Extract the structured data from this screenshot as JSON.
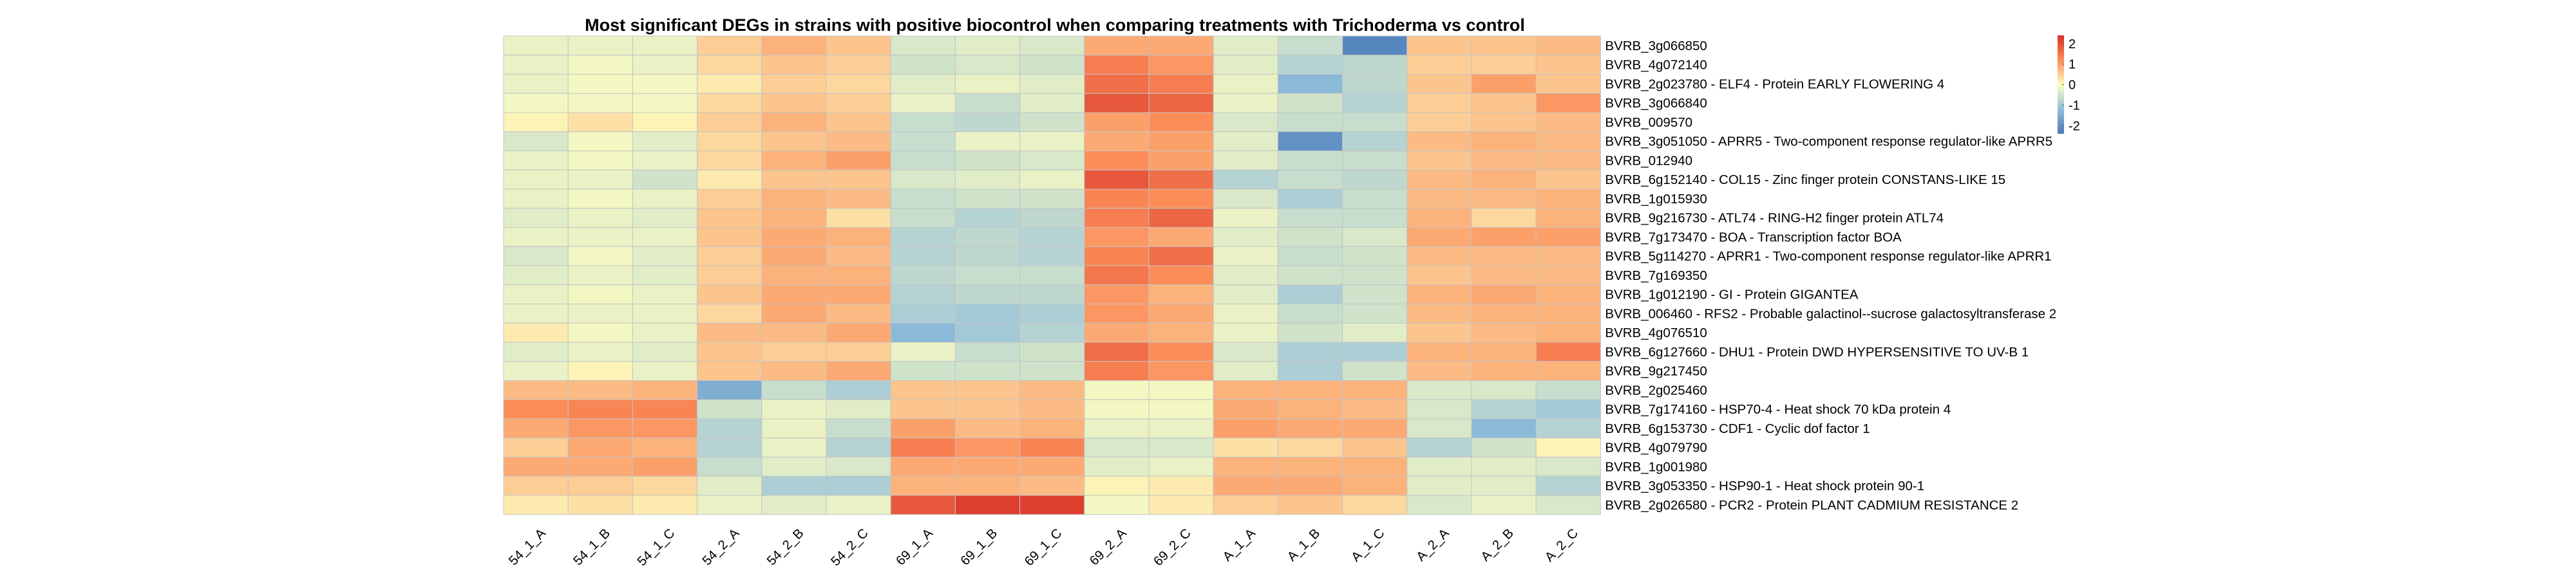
{
  "chart_data": {
    "type": "heatmap",
    "title": "Most significant DEGs in strains with positive biocontrol when comparing treatments with Trichoderma vs control",
    "columns": [
      "54_1_A",
      "54_1_B",
      "54_1_C",
      "54_2_A",
      "54_2_B",
      "54_2_C",
      "69_1_A",
      "69_1_B",
      "69_1_C",
      "69_2_A",
      "69_2_C",
      "A_1_A",
      "A_1_B",
      "A_1_C",
      "A_2_A",
      "A_2_B",
      "A_2_C"
    ],
    "rows": [
      "BVRB_3g066850",
      "BVRB_4g072140",
      "BVRB_2g023780 - ELF4 - Protein EARLY FLOWERING 4",
      "BVRB_3g066840",
      "BVRB_009570",
      "BVRB_3g051050 - APRR5 - Two-component response regulator-like APRR5",
      "BVRB_012940",
      "BVRB_6g152140 - COL15 - Zinc finger protein CONSTANS-LIKE 15",
      "BVRB_1g015930",
      "BVRB_9g216730 - ATL74 - RING-H2 finger protein ATL74",
      "BVRB_7g173470 - BOA - Transcription factor BOA",
      "BVRB_5g114270 - APRR1 - Two-component response regulator-like APRR1",
      "BVRB_7g169350",
      "BVRB_1g012190 - GI - Protein GIGANTEA",
      "BVRB_006460 - RFS2 - Probable galactinol--sucrose galactosyltransferase 2",
      "BVRB_4g076510",
      "BVRB_6g127660 - DHU1 - Protein DWD HYPERSENSITIVE TO UV-B 1",
      "BVRB_9g217450",
      "BVRB_2g025460",
      "BVRB_7g174160 - HSP70-4 - Heat shock 70 kDa protein 4",
      "BVRB_6g153730 - CDF1 - Cyclic dof factor 1",
      "BVRB_4g079790",
      "BVRB_1g001980",
      "BVRB_3g053350 - HSP90-1 - Heat shock protein 90-1",
      "BVRB_2g026580 - PCR2 - Protein PLANT CADMIUM RESISTANCE 2"
    ],
    "values": [
      [
        -0.2,
        -0.2,
        -0.2,
        0.5,
        0.8,
        0.6,
        -0.4,
        -0.3,
        -0.4,
        0.9,
        0.9,
        -0.3,
        -0.6,
        -2.2,
        0.6,
        0.6,
        0.7
      ],
      [
        -0.2,
        -0.1,
        -0.2,
        0.4,
        0.6,
        0.5,
        -0.5,
        -0.4,
        -0.5,
        1.4,
        1.1,
        -0.3,
        -0.8,
        -0.7,
        0.5,
        0.5,
        0.6
      ],
      [
        -0.2,
        -0.1,
        -0.1,
        0.2,
        0.5,
        0.4,
        -0.3,
        -0.2,
        -0.3,
        1.6,
        1.4,
        -0.2,
        -1.3,
        -0.7,
        0.6,
        1.0,
        0.6
      ],
      [
        -0.1,
        -0.1,
        -0.1,
        0.4,
        0.6,
        0.5,
        -0.2,
        -0.6,
        -0.3,
        1.9,
        1.7,
        -0.2,
        -0.5,
        -0.8,
        0.5,
        0.6,
        1.1
      ],
      [
        0.1,
        0.3,
        0.1,
        0.5,
        0.8,
        0.6,
        -0.6,
        -0.7,
        -0.5,
        1.0,
        1.2,
        -0.4,
        -0.6,
        -0.6,
        0.5,
        0.6,
        0.7
      ],
      [
        -0.4,
        -0.1,
        -0.3,
        0.4,
        0.6,
        0.7,
        -0.6,
        -0.2,
        -0.2,
        0.9,
        1.0,
        -0.3,
        -2.0,
        -0.8,
        0.7,
        0.8,
        0.7
      ],
      [
        -0.2,
        -0.1,
        -0.2,
        0.4,
        0.8,
        1.0,
        -0.6,
        -0.5,
        -0.4,
        1.2,
        1.0,
        -0.3,
        -0.6,
        -0.6,
        0.6,
        0.7,
        0.7
      ],
      [
        -0.2,
        -0.2,
        -0.5,
        0.2,
        0.6,
        0.6,
        -0.4,
        -0.3,
        -0.2,
        1.9,
        1.6,
        -0.8,
        -0.6,
        -0.7,
        0.7,
        0.8,
        0.6
      ],
      [
        -0.2,
        -0.1,
        -0.2,
        0.5,
        0.8,
        0.7,
        -0.6,
        -0.5,
        -0.5,
        1.3,
        1.2,
        -0.4,
        -0.9,
        -0.6,
        0.7,
        0.7,
        0.8
      ],
      [
        -0.3,
        -0.2,
        -0.3,
        0.6,
        0.8,
        0.3,
        -0.6,
        -0.8,
        -0.7,
        1.4,
        1.7,
        -0.2,
        -0.6,
        -0.6,
        0.8,
        0.4,
        0.8
      ],
      [
        -0.2,
        -0.2,
        -0.2,
        0.6,
        0.9,
        0.8,
        -0.8,
        -0.7,
        -0.8,
        1.1,
        0.9,
        -0.3,
        -0.5,
        -0.4,
        0.9,
        1.0,
        1.0
      ],
      [
        -0.4,
        -0.1,
        -0.3,
        0.5,
        0.9,
        0.7,
        -0.8,
        -0.7,
        -0.8,
        1.3,
        1.6,
        -0.2,
        -0.6,
        -0.5,
        0.7,
        0.7,
        0.7
      ],
      [
        -0.3,
        -0.2,
        -0.3,
        0.5,
        0.8,
        0.8,
        -0.7,
        -0.6,
        -0.6,
        1.5,
        1.2,
        -0.3,
        -0.5,
        -0.5,
        0.6,
        0.7,
        0.7
      ],
      [
        -0.2,
        -0.1,
        -0.2,
        0.6,
        0.9,
        0.9,
        -0.8,
        -0.7,
        -0.7,
        1.1,
        0.8,
        -0.3,
        -0.9,
        -0.5,
        0.8,
        0.9,
        0.8
      ],
      [
        -0.2,
        -0.2,
        -0.2,
        0.4,
        0.9,
        0.7,
        -0.9,
        -1.0,
        -0.9,
        1.1,
        0.9,
        -0.2,
        -0.6,
        -0.5,
        0.7,
        0.8,
        0.8
      ],
      [
        0.2,
        -0.1,
        -0.2,
        0.7,
        0.7,
        0.9,
        -1.3,
        -1.0,
        -0.8,
        0.9,
        0.8,
        -0.2,
        -0.5,
        -0.3,
        0.6,
        0.7,
        0.8
      ],
      [
        -0.3,
        -0.2,
        -0.3,
        0.6,
        0.5,
        0.5,
        -0.2,
        -0.6,
        -0.5,
        1.6,
        1.2,
        -0.4,
        -0.9,
        -0.9,
        0.8,
        0.8,
        1.4
      ],
      [
        -0.2,
        0.1,
        -0.2,
        0.6,
        0.7,
        0.9,
        -0.5,
        -0.5,
        -0.5,
        1.4,
        1.1,
        -0.3,
        -0.9,
        -0.5,
        0.7,
        0.8,
        0.8
      ],
      [
        0.7,
        0.7,
        0.8,
        -1.5,
        -0.6,
        -0.9,
        0.6,
        0.6,
        0.7,
        -0.1,
        -0.1,
        0.8,
        0.8,
        0.8,
        -0.4,
        -0.4,
        -0.6
      ],
      [
        1.2,
        1.3,
        1.3,
        -0.5,
        -0.2,
        -0.3,
        0.6,
        0.6,
        0.7,
        -0.1,
        -0.1,
        0.9,
        0.8,
        0.7,
        -0.4,
        -0.8,
        -1.0
      ],
      [
        0.9,
        1.1,
        1.1,
        -0.8,
        -0.2,
        -0.6,
        1.0,
        0.7,
        0.8,
        -0.2,
        -0.2,
        1.0,
        0.9,
        0.9,
        -0.4,
        -1.3,
        -0.8
      ],
      [
        0.5,
        0.9,
        0.8,
        -0.8,
        -0.2,
        -0.8,
        1.4,
        1.1,
        1.3,
        -0.4,
        -0.4,
        0.3,
        0.4,
        0.6,
        -0.8,
        -0.5,
        0.1
      ],
      [
        0.9,
        0.9,
        1.0,
        -0.6,
        -0.3,
        -0.4,
        0.9,
        0.9,
        0.9,
        -0.3,
        -0.2,
        0.8,
        0.8,
        0.8,
        -0.3,
        -0.3,
        -0.4
      ],
      [
        0.5,
        0.5,
        0.4,
        -0.3,
        -0.9,
        -0.9,
        0.8,
        0.8,
        0.7,
        0.1,
        0.2,
        0.9,
        0.9,
        0.8,
        -0.3,
        -0.3,
        -0.8
      ],
      [
        0.2,
        0.3,
        0.2,
        -0.2,
        -0.3,
        -0.2,
        1.9,
        2.2,
        2.2,
        -0.1,
        0.2,
        0.5,
        0.6,
        0.4,
        -0.4,
        -0.2,
        -0.4
      ]
    ],
    "legend": {
      "ticks": [
        2,
        1,
        0,
        -1,
        -2
      ],
      "tick_labels": [
        "2",
        "1",
        "0",
        "-1",
        "-2"
      ],
      "range": [
        -2.4,
        2.4
      ],
      "colors": {
        "low": "#4a7ab8",
        "mid": "#fcfcc0",
        "high": "#d73027"
      },
      "placement": "top-right"
    },
    "grid": true
  }
}
